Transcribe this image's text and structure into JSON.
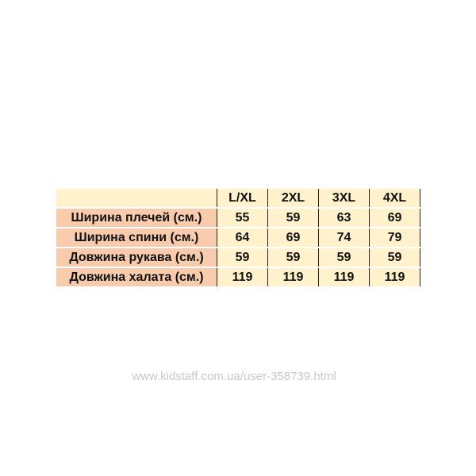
{
  "table": {
    "columns": [
      "L/XL",
      "2XL",
      "3XL",
      "4XL"
    ],
    "rows": [
      {
        "label": "Ширина плечей (см.)",
        "values": [
          "55",
          "59",
          "63",
          "69"
        ]
      },
      {
        "label": "Ширина спини (см.)",
        "values": [
          "64",
          "69",
          "74",
          "79"
        ]
      },
      {
        "label": "Довжина рукава (см.)",
        "values": [
          "59",
          "59",
          "59",
          "59"
        ]
      },
      {
        "label": "Довжина халата (см.)",
        "values": [
          "119",
          "119",
          "119",
          "119"
        ]
      }
    ]
  },
  "watermark": "www.kidstaff.com.ua/user-358739.html",
  "colors": {
    "header_bg": "#fff2cc",
    "label_bg": "#f8cbad",
    "cell_bg": "#fff2cc"
  }
}
